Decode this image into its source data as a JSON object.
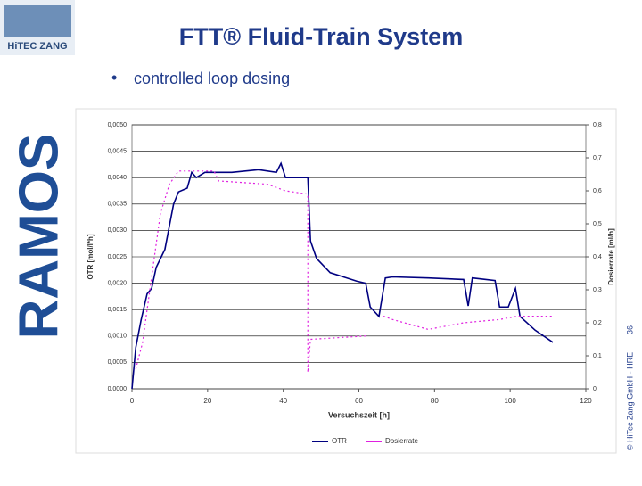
{
  "slide": {
    "title": "FTT® Fluid-Train System",
    "bullet": "controlled loop dosing",
    "logo_top": "HiTEC ZANG",
    "logo_side": "RAMOS",
    "page_number": "36",
    "copyright": "© HiTec Zang GmbH - HRE"
  },
  "chart_data": {
    "type": "line",
    "xlabel": "Versuchszeit [h]",
    "ylabel": "OTR [mol/l*h]",
    "y2label": "Dosierrate [ml/h]",
    "xlim": [
      0,
      120
    ],
    "xticks": [
      0,
      20,
      40,
      60,
      80,
      100,
      120
    ],
    "ylim": [
      0,
      0.005
    ],
    "yticks": [
      {
        "value": 0,
        "label": "0,0000"
      },
      {
        "value": 0.0005,
        "label": "0,0005"
      },
      {
        "value": 0.001,
        "label": "0,0010"
      },
      {
        "value": 0.0015,
        "label": "0,0015"
      },
      {
        "value": 0.002,
        "label": "0,0020"
      },
      {
        "value": 0.0025,
        "label": "0,0025"
      },
      {
        "value": 0.003,
        "label": "0,0030"
      },
      {
        "value": 0.0035,
        "label": "0,0035"
      },
      {
        "value": 0.004,
        "label": "0,0040"
      },
      {
        "value": 0.0045,
        "label": "0,0045"
      },
      {
        "value": 0.005,
        "label": "0,0050"
      }
    ],
    "y2lim": [
      0,
      0.8
    ],
    "y2ticks": [
      0,
      {
        "value": 0.1,
        "label": "0,1"
      },
      {
        "value": 0.2,
        "label": "0,2"
      },
      {
        "value": 0.3,
        "label": "0,3"
      },
      {
        "value": 0.4,
        "label": "0,4"
      },
      {
        "value": 0.5,
        "label": "0,5"
      },
      {
        "value": 0.6,
        "label": "0,6"
      },
      {
        "value": 0.7,
        "label": "0,7"
      },
      {
        "value": 0.8,
        "label": "0,8"
      }
    ],
    "grid": true,
    "legend": "bottom",
    "series": [
      {
        "name": "OTR",
        "color": "#000080",
        "x": [
          0,
          1,
          2.4,
          4,
          5.2,
          6.4,
          8.7,
          11,
          12.3,
          14.6,
          15.8,
          17,
          19.3,
          26.4,
          33.5,
          38.2,
          39.4,
          40.6,
          46.5,
          47.2,
          48.8,
          52.4,
          59.4,
          61.8,
          63,
          65.3,
          67,
          68.9,
          78.3,
          87.7,
          88.9,
          90,
          96,
          97.2,
          99.5,
          101.4,
          102.6,
          106.6,
          111.3
        ],
        "values": [
          0,
          0.00078,
          0.0013,
          0.0018,
          0.0019,
          0.0023,
          0.00264,
          0.0035,
          0.00373,
          0.0038,
          0.0041,
          0.004,
          0.0041,
          0.0041,
          0.00415,
          0.0041,
          0.00427,
          0.004,
          0.004,
          0.0028,
          0.00247,
          0.0022,
          0.00204,
          0.002,
          0.00155,
          0.00137,
          0.0021,
          0.00212,
          0.0021,
          0.00207,
          0.00157,
          0.0021,
          0.00205,
          0.00155,
          0.00155,
          0.0019,
          0.00137,
          0.00111,
          0.00088
        ]
      },
      {
        "name": "Dosierrate",
        "color": "#e020e0",
        "axis": "y2",
        "x": [
          1,
          2.8,
          7.5,
          9.9,
          12.3,
          21.7,
          22.9,
          35.8,
          40.6,
          46.5,
          46.5,
          47.2,
          61.8,
          64,
          66.5,
          68.9,
          78.3,
          87.7,
          97.2,
          101.9,
          111.3
        ],
        "values": [
          0.06,
          0.14,
          0.53,
          0.62,
          0.66,
          0.66,
          0.63,
          0.62,
          0.6,
          0.59,
          0.05,
          0.15,
          0.16,
          null,
          0.22,
          0.21,
          0.18,
          0.2,
          0.21,
          0.22,
          0.22
        ]
      }
    ]
  }
}
